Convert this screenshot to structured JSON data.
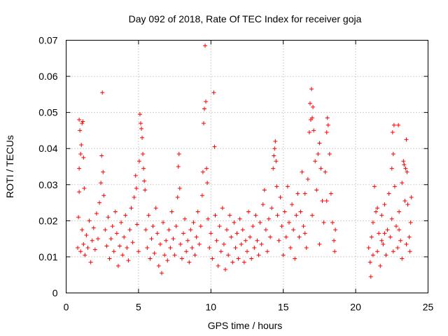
{
  "chart_data": {
    "type": "scatter",
    "title": "Day 092 of 2018, Rate Of TEC Index for receiver goja",
    "xlabel": "GPS time / hours",
    "ylabel": "ROTI / TECUs",
    "xlim": [
      0,
      25
    ],
    "ylim": [
      0,
      0.07
    ],
    "xticks": [
      0,
      5,
      10,
      15,
      20,
      25
    ],
    "xtick_labels": [
      "0",
      "5",
      "10",
      "15",
      "20",
      "25"
    ],
    "yticks": [
      0,
      0.01,
      0.02,
      0.03,
      0.04,
      0.05,
      0.06,
      0.07
    ],
    "ytick_labels": [
      "0",
      "0.01",
      "0.02",
      "0.03",
      "0.04",
      "0.05",
      "0.06",
      "0.07"
    ],
    "grid": true,
    "marker": "+",
    "color": "#ff0000",
    "series": [
      {
        "name": "ROTI",
        "points": [
          [
            0.8,
            0.0125
          ],
          [
            0.85,
            0.021
          ],
          [
            0.9,
            0.028
          ],
          [
            0.9,
            0.0345
          ],
          [
            0.9,
            0.048
          ],
          [
            0.95,
            0.045
          ],
          [
            1.0,
            0.0385
          ],
          [
            1.05,
            0.041
          ],
          [
            1.1,
            0.047
          ],
          [
            1.15,
            0.0475
          ],
          [
            1.2,
            0.0375
          ],
          [
            1.25,
            0.029
          ],
          [
            1.0,
            0.0115
          ],
          [
            1.1,
            0.0175
          ],
          [
            1.2,
            0.0135
          ],
          [
            1.3,
            0.0105
          ],
          [
            1.4,
            0.016
          ],
          [
            1.5,
            0.0125
          ],
          [
            1.6,
            0.02
          ],
          [
            1.7,
            0.0085
          ],
          [
            1.8,
            0.0145
          ],
          [
            1.9,
            0.018
          ],
          [
            2.0,
            0.012
          ],
          [
            2.1,
            0.022
          ],
          [
            2.2,
            0.015
          ],
          [
            2.3,
            0.025
          ],
          [
            2.4,
            0.0305
          ],
          [
            2.45,
            0.038
          ],
          [
            2.5,
            0.0555
          ],
          [
            2.55,
            0.0335
          ],
          [
            2.6,
            0.027
          ],
          [
            2.7,
            0.0175
          ],
          [
            2.8,
            0.013
          ],
          [
            2.9,
            0.021
          ],
          [
            3.0,
            0.0095
          ],
          [
            3.1,
            0.015
          ],
          [
            3.2,
            0.0185
          ],
          [
            3.3,
            0.0115
          ],
          [
            3.4,
            0.0225
          ],
          [
            3.5,
            0.0165
          ],
          [
            3.6,
            0.0075
          ],
          [
            3.7,
            0.013
          ],
          [
            3.8,
            0.0195
          ],
          [
            3.9,
            0.0105
          ],
          [
            4.0,
            0.0155
          ],
          [
            4.1,
            0.0215
          ],
          [
            4.2,
            0.0125
          ],
          [
            4.3,
            0.009
          ],
          [
            4.4,
            0.0175
          ],
          [
            4.5,
            0.0235
          ],
          [
            4.6,
            0.014
          ],
          [
            4.7,
            0.0265
          ],
          [
            4.8,
            0.0325
          ],
          [
            4.85,
            0.029
          ],
          [
            4.9,
            0.019
          ],
          [
            5.0,
            0.0115
          ],
          [
            5.05,
            0.0365
          ],
          [
            5.1,
            0.0495
          ],
          [
            5.15,
            0.047
          ],
          [
            5.2,
            0.0455
          ],
          [
            5.25,
            0.043
          ],
          [
            5.3,
            0.0385
          ],
          [
            5.35,
            0.0345
          ],
          [
            5.4,
            0.031
          ],
          [
            5.45,
            0.0285
          ],
          [
            5.5,
            0.0175
          ],
          [
            5.6,
            0.0125
          ],
          [
            5.7,
            0.0215
          ],
          [
            5.8,
            0.0095
          ],
          [
            5.9,
            0.015
          ],
          [
            6.0,
            0.0185
          ],
          [
            6.1,
            0.011
          ],
          [
            6.2,
            0.0235
          ],
          [
            6.3,
            0.0165
          ],
          [
            6.4,
            0.0075
          ],
          [
            6.5,
            0.0135
          ],
          [
            6.6,
            0.0055
          ],
          [
            6.7,
            0.0195
          ],
          [
            6.8,
            0.0105
          ],
          [
            6.9,
            0.0145
          ],
          [
            7.0,
            0.009
          ],
          [
            7.1,
            0.0175
          ],
          [
            7.2,
            0.0125
          ],
          [
            7.3,
            0.0225
          ],
          [
            7.4,
            0.015
          ],
          [
            7.5,
            0.0105
          ],
          [
            7.6,
            0.0185
          ],
          [
            7.7,
            0.0265
          ],
          [
            7.75,
            0.035
          ],
          [
            7.8,
            0.0385
          ],
          [
            7.85,
            0.029
          ],
          [
            7.9,
            0.0135
          ],
          [
            8.0,
            0.0095
          ],
          [
            8.1,
            0.0165
          ],
          [
            8.2,
            0.0205
          ],
          [
            8.3,
            0.0115
          ],
          [
            8.4,
            0.0145
          ],
          [
            8.5,
            0.0085
          ],
          [
            8.6,
            0.0175
          ],
          [
            8.7,
            0.0125
          ],
          [
            8.8,
            0.0195
          ],
          [
            8.9,
            0.0105
          ],
          [
            9.0,
            0.0155
          ],
          [
            9.1,
            0.0225
          ],
          [
            9.2,
            0.0135
          ],
          [
            9.3,
            0.0185
          ],
          [
            9.4,
            0.027
          ],
          [
            9.45,
            0.0335
          ],
          [
            9.5,
            0.047
          ],
          [
            9.55,
            0.051
          ],
          [
            9.6,
            0.0685
          ],
          [
            9.65,
            0.053
          ],
          [
            9.7,
            0.0345
          ],
          [
            9.75,
            0.0305
          ],
          [
            9.8,
            0.0205
          ],
          [
            9.9,
            0.0125
          ],
          [
            10.0,
            0.0165
          ],
          [
            10.1,
            0.0095
          ],
          [
            10.2,
            0.0555
          ],
          [
            10.25,
            0.0405
          ],
          [
            10.3,
            0.0215
          ],
          [
            10.4,
            0.0145
          ],
          [
            10.5,
            0.0075
          ],
          [
            10.6,
            0.0185
          ],
          [
            10.7,
            0.0115
          ],
          [
            10.8,
            0.0235
          ],
          [
            10.9,
            0.0135
          ],
          [
            11.0,
            0.0065
          ],
          [
            11.1,
            0.0175
          ],
          [
            11.2,
            0.0105
          ],
          [
            11.3,
            0.0215
          ],
          [
            11.4,
            0.0155
          ],
          [
            11.5,
            0.0085
          ],
          [
            11.6,
            0.0195
          ],
          [
            11.7,
            0.0125
          ],
          [
            11.8,
            0.0165
          ],
          [
            11.9,
            0.0095
          ],
          [
            12.0,
            0.0205
          ],
          [
            12.1,
            0.0135
          ],
          [
            12.2,
            0.0175
          ],
          [
            12.3,
            0.0085
          ],
          [
            12.4,
            0.0145
          ],
          [
            12.5,
            0.0115
          ],
          [
            12.6,
            0.0225
          ],
          [
            12.7,
            0.0155
          ],
          [
            12.8,
            0.0095
          ],
          [
            12.9,
            0.0185
          ],
          [
            13.0,
            0.0125
          ],
          [
            13.1,
            0.0215
          ],
          [
            13.2,
            0.0145
          ],
          [
            13.3,
            0.0105
          ],
          [
            13.4,
            0.0195
          ],
          [
            13.5,
            0.0135
          ],
          [
            13.6,
            0.0245
          ],
          [
            13.7,
            0.0285
          ],
          [
            13.8,
            0.0175
          ],
          [
            13.9,
            0.0115
          ],
          [
            14.0,
            0.0205
          ],
          [
            14.1,
            0.0155
          ],
          [
            14.2,
            0.0235
          ],
          [
            14.3,
            0.0345
          ],
          [
            14.35,
            0.038
          ],
          [
            14.4,
            0.04
          ],
          [
            14.45,
            0.042
          ],
          [
            14.5,
            0.0365
          ],
          [
            14.55,
            0.0295
          ],
          [
            14.6,
            0.0215
          ],
          [
            14.7,
            0.0145
          ],
          [
            14.8,
            0.0265
          ],
          [
            14.9,
            0.0185
          ],
          [
            15.0,
            0.0105
          ],
          [
            15.1,
            0.0225
          ],
          [
            15.2,
            0.0155
          ],
          [
            15.3,
            0.0295
          ],
          [
            15.4,
            0.0195
          ],
          [
            15.5,
            0.0125
          ],
          [
            15.6,
            0.0245
          ],
          [
            15.7,
            0.0175
          ],
          [
            15.8,
            0.0095
          ],
          [
            15.9,
            0.0215
          ],
          [
            16.0,
            0.0275
          ],
          [
            16.1,
            0.0155
          ],
          [
            16.2,
            0.0225
          ],
          [
            16.3,
            0.0335
          ],
          [
            16.4,
            0.0185
          ],
          [
            16.5,
            0.0275
          ],
          [
            16.6,
            0.0125
          ],
          [
            16.7,
            0.0315
          ],
          [
            16.8,
            0.0445
          ],
          [
            16.85,
            0.0525
          ],
          [
            16.9,
            0.048
          ],
          [
            16.95,
            0.0565
          ],
          [
            17.0,
            0.0485
          ],
          [
            17.05,
            0.0515
          ],
          [
            17.1,
            0.045
          ],
          [
            17.2,
            0.0365
          ],
          [
            17.3,
            0.0285
          ],
          [
            17.4,
            0.0385
          ],
          [
            17.5,
            0.0415
          ],
          [
            17.6,
            0.0345
          ],
          [
            17.7,
            0.0255
          ],
          [
            17.8,
            0.0195
          ],
          [
            17.9,
            0.0335
          ],
          [
            18.0,
            0.0445
          ],
          [
            18.05,
            0.0485
          ],
          [
            18.1,
            0.0465
          ],
          [
            18.2,
            0.0385
          ],
          [
            18.3,
            0.0275
          ],
          [
            18.4,
            0.0195
          ],
          [
            18.5,
            0.0145
          ],
          [
            18.55,
            0.0115
          ],
          [
            18.6,
            0.0175
          ],
          [
            16.5,
            0.0165
          ],
          [
            17.0,
            0.0215
          ],
          [
            17.5,
            0.0135
          ],
          [
            18.0,
            0.0255
          ],
          [
            20.9,
            0.0125
          ],
          [
            21.0,
            0.0085
          ],
          [
            21.05,
            0.0045
          ],
          [
            21.1,
            0.0155
          ],
          [
            21.2,
            0.0195
          ],
          [
            21.3,
            0.0295
          ],
          [
            21.4,
            0.0225
          ],
          [
            21.5,
            0.0115
          ],
          [
            21.6,
            0.0165
          ],
          [
            21.7,
            0.0075
          ],
          [
            21.8,
            0.0215
          ],
          [
            21.9,
            0.0135
          ],
          [
            22.0,
            0.0245
          ],
          [
            22.1,
            0.0105
          ],
          [
            22.2,
            0.0175
          ],
          [
            22.3,
            0.0275
          ],
          [
            22.4,
            0.0155
          ],
          [
            22.5,
            0.0345
          ],
          [
            22.55,
            0.0445
          ],
          [
            22.6,
            0.0385
          ],
          [
            22.65,
            0.0465
          ],
          [
            22.7,
            0.0295
          ],
          [
            22.8,
            0.0185
          ],
          [
            22.9,
            0.0125
          ],
          [
            22.95,
            0.0465
          ],
          [
            23.0,
            0.0225
          ],
          [
            23.1,
            0.0145
          ],
          [
            23.2,
            0.0305
          ],
          [
            23.3,
            0.0365
          ],
          [
            23.35,
            0.0355
          ],
          [
            23.4,
            0.0255
          ],
          [
            23.45,
            0.0345
          ],
          [
            23.5,
            0.0425
          ],
          [
            23.55,
            0.0335
          ],
          [
            23.6,
            0.0245
          ],
          [
            23.7,
            0.0155
          ],
          [
            23.75,
            0.0115
          ],
          [
            23.8,
            0.0195
          ],
          [
            23.85,
            0.0265
          ],
          [
            21.5,
            0.0235
          ],
          [
            22.0,
            0.0165
          ],
          [
            22.5,
            0.0205
          ],
          [
            23.0,
            0.0175
          ],
          [
            23.5,
            0.0135
          ],
          [
            21.2,
            0.0105
          ],
          [
            21.8,
            0.0145
          ],
          [
            22.6,
            0.0115
          ],
          [
            23.2,
            0.0095
          ]
        ]
      }
    ]
  }
}
